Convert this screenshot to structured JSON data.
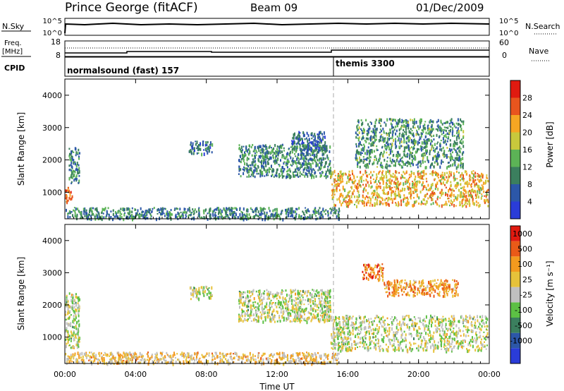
{
  "header": {
    "station": "Prince George (fitACF)",
    "beam": "Beam 09",
    "date": "01/Dec/2009"
  },
  "top_panels": {
    "nsky_label": "N.Sky",
    "nsky_ticks": [
      "10^5",
      "10^0"
    ],
    "nsearch_label": "N.Search",
    "nsearch_ticks": [
      "10^5",
      "10^0"
    ],
    "freq_label_1": "Freq.",
    "freq_label_2": "[MHz]",
    "freq_ticks": [
      "18",
      "8"
    ],
    "nave_label": "Nave",
    "nave_ticks": [
      "60",
      "0"
    ],
    "cpid_label": "CPID",
    "cpid_segments": [
      {
        "label": "normalsound (fast) 157",
        "start_hour": 0
      },
      {
        "label": "themis 3300",
        "start_hour": 15.3
      }
    ]
  },
  "chart_data": [
    {
      "type": "heatmap",
      "name": "power",
      "ylabel": "Slant Range [km]",
      "colorbar_label": "Power [dB]",
      "xlim": [
        0,
        24
      ],
      "ylim": [
        180,
        4500
      ],
      "y_ticks": [
        "1000",
        "2000",
        "3000",
        "4000"
      ],
      "colorbar_ticks": [
        "4",
        "8",
        "12",
        "16",
        "20",
        "24",
        "28"
      ],
      "colors": [
        "#2a3cd8",
        "#2c57a8",
        "#3b7f5e",
        "#5cb356",
        "#c8c83c",
        "#f5a623",
        "#e8551e",
        "#e01a10"
      ],
      "regions": [
        {
          "t": [
            0.0,
            0.4
          ],
          "r": [
            700,
            1200
          ],
          "level": 0.75
        },
        {
          "t": [
            0.2,
            0.8
          ],
          "r": [
            1300,
            2400
          ],
          "level": 0.3
        },
        {
          "t": [
            7.0,
            8.3
          ],
          "r": [
            2200,
            2600
          ],
          "level": 0.25
        },
        {
          "t": [
            9.8,
            15.0
          ],
          "r": [
            1500,
            2500
          ],
          "level": 0.3
        },
        {
          "t": [
            12.8,
            14.7
          ],
          "r": [
            2300,
            2900
          ],
          "level": 0.2
        },
        {
          "t": [
            15.0,
            23.9
          ],
          "r": [
            600,
            1700
          ],
          "level": 0.65
        },
        {
          "t": [
            16.4,
            22.5
          ],
          "r": [
            1800,
            3300
          ],
          "level": 0.35
        },
        {
          "t": [
            0.0,
            15.5
          ],
          "r": [
            200,
            550
          ],
          "level": 0.3
        }
      ]
    },
    {
      "type": "heatmap",
      "name": "velocity",
      "xlabel": "Time UT",
      "ylabel": "Slant Range [km]",
      "colorbar_label": "Velocity [m s⁻¹]",
      "xlim": [
        0,
        24
      ],
      "ylim": [
        180,
        4500
      ],
      "y_ticks": [
        "1000",
        "2000",
        "3000",
        "4000"
      ],
      "x_ticks": [
        "00:00",
        "04:00",
        "08:00",
        "12:00",
        "16:00",
        "20:00",
        "00:00"
      ],
      "colorbar_ticks": [
        "1000",
        "500",
        "100",
        "25",
        "-25",
        "-100",
        "-500",
        "-1000"
      ],
      "colors": [
        "#2a3cd8",
        "#2c57a8",
        "#3b7f5e",
        "#5cc044",
        "#c0c0c0",
        "#e6c23a",
        "#f39a1e",
        "#ea5a18",
        "#e01a10"
      ],
      "regions": [
        {
          "t": [
            0.0,
            0.8
          ],
          "r": [
            700,
            2400
          ],
          "level": 0.5
        },
        {
          "t": [
            7.0,
            8.3
          ],
          "r": [
            2200,
            2600
          ],
          "level": 0.5
        },
        {
          "t": [
            9.8,
            15.0
          ],
          "r": [
            1500,
            2500
          ],
          "level": 0.5
        },
        {
          "t": [
            15.0,
            23.9
          ],
          "r": [
            600,
            1700
          ],
          "level": 0.5
        },
        {
          "t": [
            16.8,
            18.0
          ],
          "r": [
            2800,
            3300
          ],
          "level": 0.8
        },
        {
          "t": [
            18.0,
            22.2
          ],
          "r": [
            2300,
            2800
          ],
          "level": 0.72
        },
        {
          "t": [
            0.0,
            15.5
          ],
          "r": [
            200,
            550
          ],
          "level": 0.62
        }
      ]
    }
  ]
}
